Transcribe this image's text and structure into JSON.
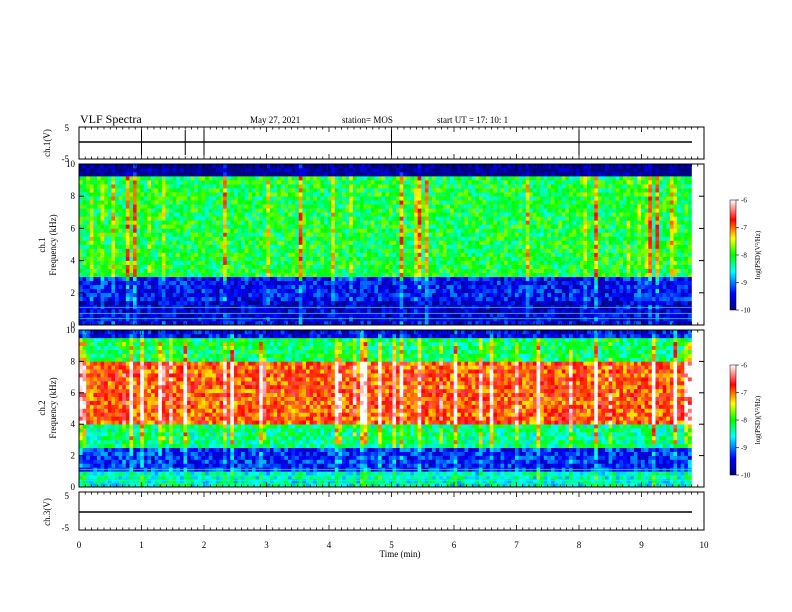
{
  "header": {
    "title": "VLF Spectra",
    "date": "May 27, 2021",
    "station": "station= MOS",
    "start": "start  UT  =   17: 10: 1"
  },
  "chart_data": [
    {
      "type": "line",
      "name": "ch1-waveform-panel",
      "ylabel": "ch.1(V)",
      "ylim": [
        -5,
        5
      ],
      "yticks": [
        "5",
        "-5"
      ],
      "baseline_value": 0
    },
    {
      "type": "heatmap",
      "name": "ch1-spectrogram",
      "ylabel": "ch.1\nFrequency (kHz)",
      "ylim": [
        0,
        10
      ],
      "yticks": [
        "0",
        "2",
        "4",
        "6",
        "8",
        "10"
      ],
      "colorbar": {
        "label": "log(PSD)(V²/Hz)",
        "range": [
          -10,
          -6
        ],
        "ticks": [
          "-6",
          "-7",
          "-8",
          "-9",
          "-10"
        ]
      },
      "band_profile": [
        {
          "f_low": 0,
          "f_high": 0.3,
          "level": -9.5
        },
        {
          "f_low": 0.3,
          "f_high": 1.6,
          "level": -9.6
        },
        {
          "f_low": 1.6,
          "f_high": 2.9,
          "level": -9.4
        },
        {
          "f_low": 2.9,
          "f_high": 9.2,
          "level": -8.1
        },
        {
          "f_low": 9.2,
          "f_high": 10,
          "level": -10
        }
      ]
    },
    {
      "type": "heatmap",
      "name": "ch2-spectrogram",
      "ylabel": "ch.2\nFrequency (kHz)",
      "ylim": [
        0,
        10
      ],
      "yticks": [
        "0",
        "2",
        "4",
        "6",
        "8",
        "10"
      ],
      "colorbar": {
        "label": "log(PSD)(V²/Hz)",
        "range": [
          -10,
          -6
        ],
        "ticks": [
          "-6",
          "-7",
          "-8",
          "-9",
          "-10"
        ]
      },
      "band_profile": [
        {
          "f_low": 0,
          "f_high": 1.0,
          "level": -8.5
        },
        {
          "f_low": 1.0,
          "f_high": 2.5,
          "level": -9.3
        },
        {
          "f_low": 2.5,
          "f_high": 4.0,
          "level": -8.3
        },
        {
          "f_low": 4.0,
          "f_high": 8.0,
          "level": -6.9
        },
        {
          "f_low": 8.0,
          "f_high": 9.4,
          "level": -8.2
        },
        {
          "f_low": 9.4,
          "f_high": 10,
          "level": -9.5
        }
      ]
    },
    {
      "type": "line",
      "name": "ch3-waveform-panel",
      "ylabel": "ch.3(V)",
      "ylim": [
        -5,
        5
      ],
      "yticks": [
        "5",
        "-5"
      ],
      "baseline_value": 0
    }
  ],
  "time_axis": {
    "xlabel": "Time  (min)",
    "range": [
      0,
      10
    ],
    "ticks": [
      "0",
      "1",
      "2",
      "3",
      "4",
      "5",
      "6",
      "7",
      "8",
      "9",
      "10"
    ],
    "data_end": 9.8
  },
  "colors": {
    "background": "#ffffff",
    "axis": "#000000",
    "colormap": [
      "#000080",
      "#0000ff",
      "#00ffff",
      "#00ff00",
      "#ffff00",
      "#ff0000",
      "#ffffff"
    ]
  }
}
